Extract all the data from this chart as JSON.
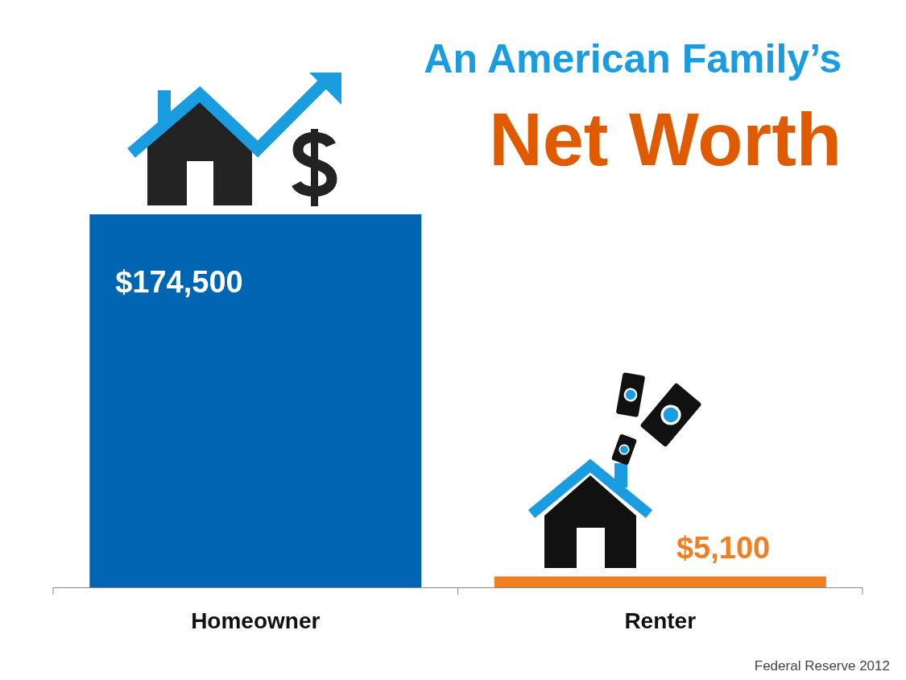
{
  "chart_data": {
    "type": "bar",
    "title": "An American Family’s",
    "subtitle": "Net Worth",
    "categories": [
      "Homeowner",
      "Renter"
    ],
    "values": [
      174500,
      5100
    ],
    "colors": [
      "#0066b3",
      "#f07f22"
    ],
    "value_labels": [
      "$174,500",
      "$5,100"
    ],
    "annotations": [
      "Federal Reserve 2012"
    ]
  }
}
